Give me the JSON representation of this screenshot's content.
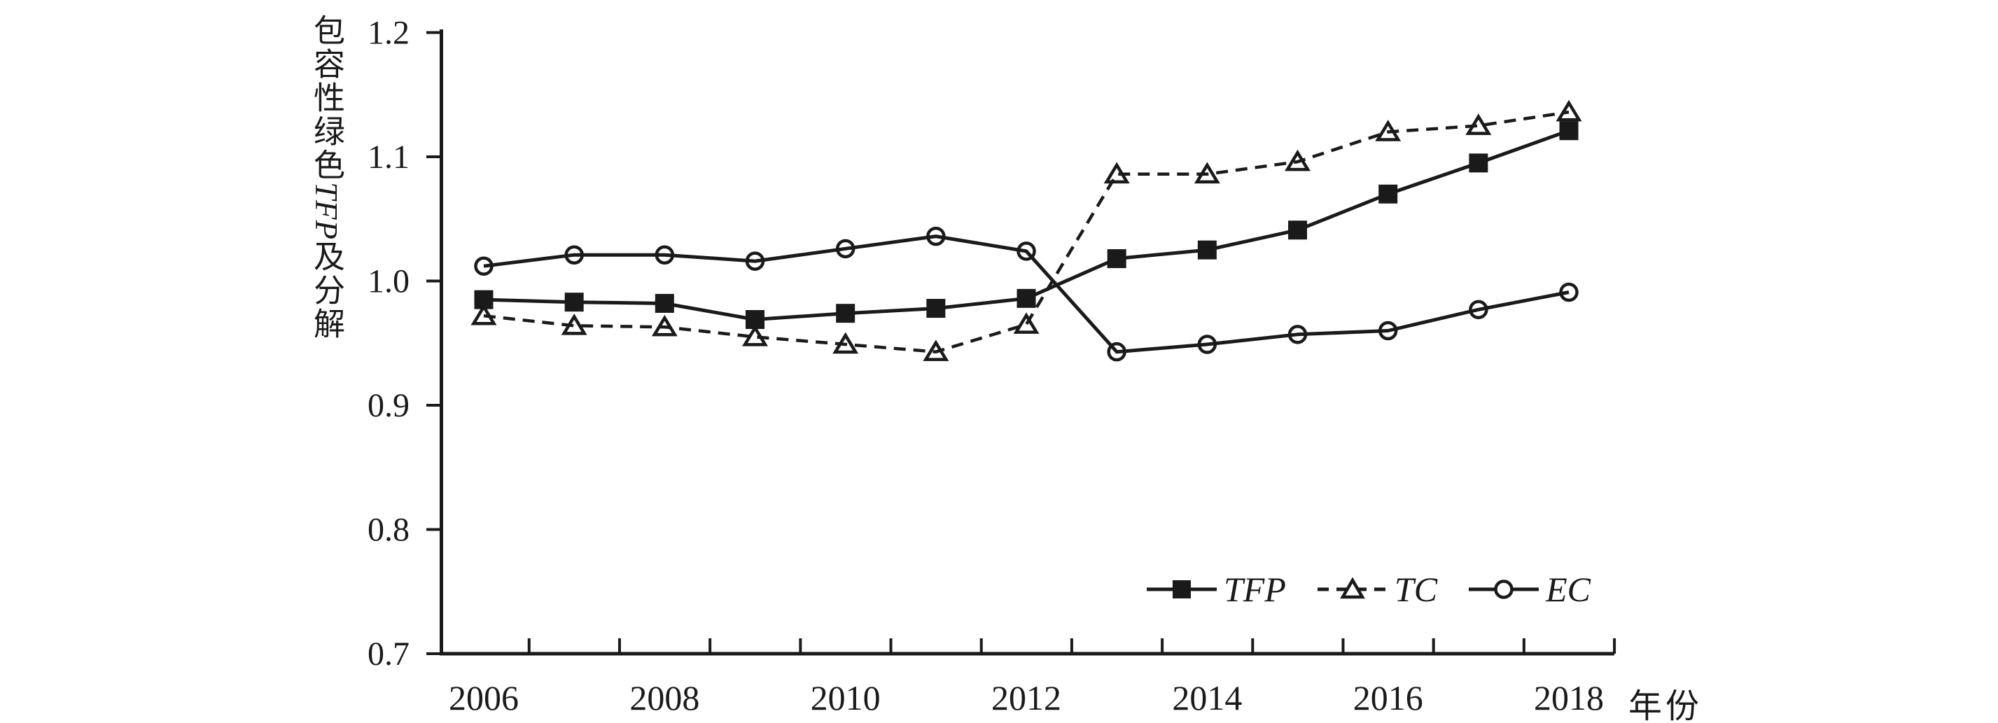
{
  "page": {
    "background": "#ffffff",
    "ink": "#1a1a1a"
  },
  "y_axis": {
    "title_prefix": "包容性绿色",
    "title_italic": "TFP",
    "title_suffix": "及分解",
    "ticks": [
      "1.2",
      "1.1",
      "1.0",
      "0.9",
      "0.8",
      "0.7"
    ]
  },
  "x_axis": {
    "title": "年份",
    "ticks": [
      "2006",
      "2008",
      "2010",
      "2012",
      "2014",
      "2016",
      "2018"
    ]
  },
  "legend": {
    "tfp_label": "TFP",
    "tc_label": "TC",
    "ec_label": "EC"
  },
  "chart_data": {
    "type": "line",
    "title": "",
    "xlabel": "年份",
    "ylabel": "包容性绿色TFP及分解",
    "x": [
      2006,
      2007,
      2008,
      2009,
      2010,
      2011,
      2012,
      2013,
      2014,
      2015,
      2016,
      2017,
      2018
    ],
    "series": [
      {
        "name": "TFP",
        "marker": "filled-square",
        "line_style": "solid",
        "values": [
          0.985,
          0.983,
          0.982,
          0.969,
          0.974,
          0.978,
          0.986,
          1.018,
          1.025,
          1.041,
          1.07,
          1.095,
          1.121
        ]
      },
      {
        "name": "TC",
        "marker": "open-triangle",
        "line_style": "dashed",
        "values": [
          0.972,
          0.964,
          0.963,
          0.955,
          0.949,
          0.943,
          0.965,
          1.086,
          1.086,
          1.096,
          1.12,
          1.125,
          1.136
        ]
      },
      {
        "name": "EC",
        "marker": "open-circle",
        "line_style": "solid",
        "values": [
          1.012,
          1.021,
          1.021,
          1.016,
          1.026,
          1.036,
          1.024,
          0.943,
          0.949,
          0.957,
          0.96,
          0.977,
          0.991
        ]
      }
    ],
    "ylim": [
      0.7,
      1.2
    ],
    "y_tick_step": 0.1,
    "x_tick_labels": [
      "2006",
      "2008",
      "2010",
      "2012",
      "2014",
      "2016",
      "2018"
    ],
    "grid": false,
    "legend_position": "inside-bottom-right"
  }
}
